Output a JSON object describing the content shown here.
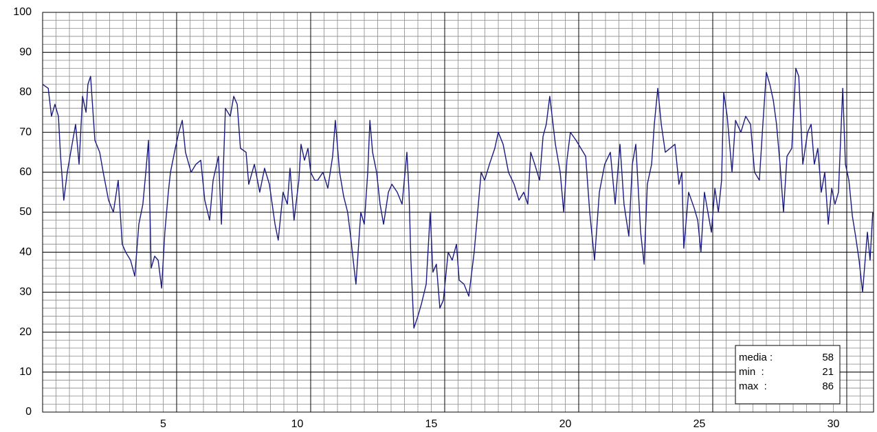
{
  "chart_data": {
    "type": "line",
    "x": [
      0,
      0.21,
      0.33,
      0.46,
      0.59,
      0.67,
      0.79,
      0.92,
      1.1,
      1.23,
      1.36,
      1.49,
      1.62,
      1.69,
      1.79,
      1.95,
      2.13,
      2.26,
      2.46,
      2.64,
      2.82,
      2.97,
      3.1,
      3.28,
      3.44,
      3.59,
      3.74,
      3.85,
      3.95,
      4.05,
      4.18,
      4.31,
      4.44,
      4.56,
      4.69,
      4.77,
      4.95,
      5.08,
      5.21,
      5.33,
      5.54,
      5.72,
      5.9,
      6.05,
      6.23,
      6.36,
      6.56,
      6.67,
      6.82,
      7.0,
      7.13,
      7.26,
      7.38,
      7.59,
      7.69,
      7.9,
      8.1,
      8.28,
      8.46,
      8.67,
      8.79,
      8.97,
      9.13,
      9.23,
      9.38,
      9.56,
      9.64,
      9.77,
      9.9,
      10.0,
      10.15,
      10.26,
      10.46,
      10.64,
      10.82,
      10.92,
      11.08,
      11.23,
      11.38,
      11.49,
      11.62,
      11.69,
      11.87,
      12.0,
      12.13,
      12.21,
      12.31,
      12.46,
      12.59,
      12.72,
      12.9,
      13.03,
      13.23,
      13.41,
      13.59,
      13.67,
      13.74,
      13.85,
      14.0,
      14.13,
      14.31,
      14.46,
      14.56,
      14.69,
      14.82,
      14.95,
      15.13,
      15.28,
      15.44,
      15.54,
      15.72,
      15.9,
      16.1,
      16.23,
      16.36,
      16.49,
      16.67,
      16.87,
      17.0,
      17.18,
      17.38,
      17.59,
      17.77,
      17.95,
      18.1,
      18.21,
      18.36,
      18.54,
      18.67,
      18.79,
      18.92,
      19.13,
      19.31,
      19.44,
      19.56,
      19.69,
      19.9,
      20.08,
      20.26,
      20.41,
      20.59,
      20.77,
      20.97,
      21.18,
      21.36,
      21.54,
      21.69,
      21.87,
      22.0,
      22.13,
      22.31,
      22.44,
      22.56,
      22.72,
      22.82,
      22.95,
      23.08,
      23.23,
      23.41,
      23.59,
      23.74,
      23.85,
      23.92,
      24.1,
      24.31,
      24.44,
      24.56,
      24.69,
      24.82,
      24.95,
      25.08,
      25.21,
      25.33,
      25.41,
      25.54,
      25.72,
      25.85,
      26.05,
      26.23,
      26.41,
      26.56,
      26.74,
      26.87,
      27.0,
      27.13,
      27.26,
      27.38,
      27.51,
      27.64,
      27.77,
      27.95,
      28.1,
      28.21,
      28.36,
      28.54,
      28.67,
      28.79,
      28.92,
      29.05,
      29.18,
      29.31,
      29.44,
      29.56,
      29.69,
      29.85,
      29.95,
      30.08,
      30.21,
      30.33,
      30.46,
      30.59,
      30.77,
      30.87,
      30.97
    ],
    "series": [
      {
        "color": "#1a1a80",
        "values": [
          82,
          81,
          74,
          77,
          74,
          64,
          53,
          60,
          67,
          72,
          62,
          79,
          75,
          82,
          84,
          68,
          65,
          60,
          53,
          50,
          58,
          42,
          40,
          38,
          34,
          47,
          52,
          60,
          68,
          36,
          39,
          38,
          31,
          45,
          55,
          60,
          66,
          70,
          73,
          65,
          60,
          62,
          63,
          53,
          48,
          58,
          64,
          47,
          76,
          74,
          79,
          77,
          66,
          65,
          57,
          62,
          55,
          61,
          57,
          47,
          43,
          55,
          52,
          61,
          48,
          58,
          67,
          63,
          66,
          60,
          58,
          58,
          60,
          56,
          64,
          73,
          60,
          54,
          50,
          44,
          36,
          32,
          50,
          47,
          60,
          73,
          65,
          60,
          52,
          47,
          55,
          57,
          55,
          52,
          65,
          55,
          38,
          21,
          24,
          27,
          32,
          50,
          35,
          37,
          26,
          28,
          40,
          38,
          42,
          33,
          32,
          29,
          40,
          50,
          60,
          58,
          62,
          66,
          70,
          67,
          60,
          57,
          53,
          55,
          52,
          65,
          62,
          58,
          69,
          72,
          79,
          67,
          60,
          50,
          63,
          70,
          68,
          66,
          64,
          50,
          38,
          55,
          62,
          65,
          52,
          67,
          52,
          44,
          62,
          67,
          45,
          37,
          57,
          62,
          72,
          81,
          72,
          65,
          66,
          67,
          57,
          60,
          41,
          55,
          51,
          48,
          40,
          55,
          50,
          45,
          56,
          50,
          58,
          80,
          74,
          60,
          73,
          70,
          74,
          72,
          60,
          58,
          72,
          85,
          82,
          78,
          72,
          62,
          50,
          64,
          66,
          86,
          84,
          62,
          70,
          72,
          62,
          66,
          55,
          60,
          47,
          56,
          52,
          55,
          81,
          62,
          58,
          49,
          44,
          38,
          30,
          45,
          38,
          50
        ]
      }
    ],
    "xlim": [
      0,
      31
    ],
    "xticks": [
      {
        "value": 4.5,
        "label": "5"
      },
      {
        "value": 9.5,
        "label": "10"
      },
      {
        "value": 14.5,
        "label": "15"
      },
      {
        "value": 19.5,
        "label": "20"
      },
      {
        "value": 24.5,
        "label": "25"
      },
      {
        "value": 29.5,
        "label": "30"
      }
    ],
    "ylim": [
      0,
      100
    ],
    "yticks": [
      0,
      10,
      20,
      30,
      40,
      50,
      60,
      70,
      80,
      90,
      100
    ],
    "grid": true,
    "summary": [
      {
        "label": "media :",
        "value": 58
      },
      {
        "label": "min  :",
        "value": 21
      },
      {
        "label": "max  :",
        "value": 86
      }
    ]
  }
}
